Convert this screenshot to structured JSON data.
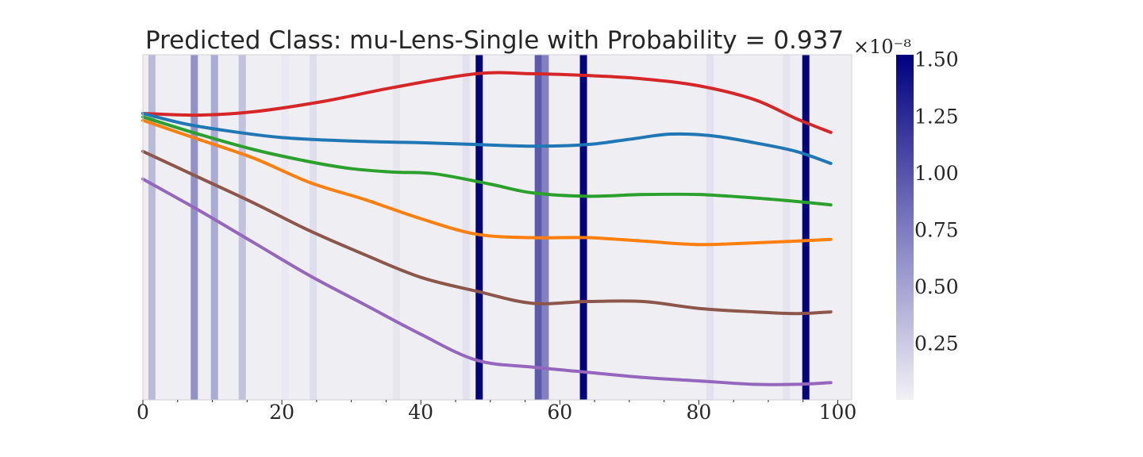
{
  "chart_data": {
    "type": "line",
    "title": "Predicted Class: mu-Lens-Single with Probability = 0.937",
    "xlabel": "",
    "ylabel": "",
    "xlim": [
      0,
      102
    ],
    "x_ticks": [
      "0",
      "20",
      "40",
      "60",
      "80",
      "100"
    ],
    "y_ticks": [],
    "grid": false,
    "legend": "none",
    "background": "#efeff3",
    "series": [
      {
        "color": "#d62728",
        "points": [
          [
            0,
            0.83
          ],
          [
            8,
            0.825
          ],
          [
            16,
            0.835
          ],
          [
            26,
            0.865
          ],
          [
            36,
            0.905
          ],
          [
            48,
            0.945
          ],
          [
            56,
            0.945
          ],
          [
            64,
            0.94
          ],
          [
            72,
            0.93
          ],
          [
            80,
            0.91
          ],
          [
            88,
            0.87
          ],
          [
            94,
            0.815
          ],
          [
            99,
            0.775
          ]
        ]
      },
      {
        "color": "#1f77b4",
        "points": [
          [
            0,
            0.83
          ],
          [
            6,
            0.8
          ],
          [
            12,
            0.78
          ],
          [
            20,
            0.76
          ],
          [
            30,
            0.75
          ],
          [
            40,
            0.745
          ],
          [
            48,
            0.74
          ],
          [
            56,
            0.735
          ],
          [
            64,
            0.74
          ],
          [
            70,
            0.755
          ],
          [
            76,
            0.77
          ],
          [
            82,
            0.765
          ],
          [
            88,
            0.745
          ],
          [
            94,
            0.72
          ],
          [
            99,
            0.685
          ]
        ]
      },
      {
        "color": "#2ca02c",
        "points": [
          [
            0,
            0.82
          ],
          [
            8,
            0.77
          ],
          [
            16,
            0.725
          ],
          [
            24,
            0.69
          ],
          [
            30,
            0.67
          ],
          [
            36,
            0.66
          ],
          [
            42,
            0.655
          ],
          [
            50,
            0.625
          ],
          [
            56,
            0.6
          ],
          [
            64,
            0.59
          ],
          [
            72,
            0.595
          ],
          [
            80,
            0.595
          ],
          [
            88,
            0.585
          ],
          [
            94,
            0.575
          ],
          [
            99,
            0.565
          ]
        ]
      },
      {
        "color": "#ff7f0e",
        "points": [
          [
            0,
            0.81
          ],
          [
            8,
            0.755
          ],
          [
            16,
            0.7
          ],
          [
            24,
            0.63
          ],
          [
            32,
            0.58
          ],
          [
            40,
            0.525
          ],
          [
            48,
            0.48
          ],
          [
            56,
            0.47
          ],
          [
            64,
            0.47
          ],
          [
            72,
            0.46
          ],
          [
            80,
            0.45
          ],
          [
            88,
            0.455
          ],
          [
            94,
            0.46
          ],
          [
            99,
            0.465
          ]
        ]
      },
      {
        "color": "#8c564b",
        "points": [
          [
            0,
            0.72
          ],
          [
            8,
            0.645
          ],
          [
            16,
            0.57
          ],
          [
            24,
            0.49
          ],
          [
            32,
            0.42
          ],
          [
            40,
            0.355
          ],
          [
            48,
            0.315
          ],
          [
            56,
            0.28
          ],
          [
            64,
            0.285
          ],
          [
            72,
            0.285
          ],
          [
            80,
            0.265
          ],
          [
            88,
            0.255
          ],
          [
            94,
            0.25
          ],
          [
            99,
            0.255
          ]
        ]
      },
      {
        "color": "#9467bd",
        "points": [
          [
            0,
            0.64
          ],
          [
            8,
            0.55
          ],
          [
            16,
            0.455
          ],
          [
            24,
            0.36
          ],
          [
            32,
            0.275
          ],
          [
            40,
            0.19
          ],
          [
            48,
            0.115
          ],
          [
            56,
            0.095
          ],
          [
            64,
            0.08
          ],
          [
            72,
            0.065
          ],
          [
            80,
            0.055
          ],
          [
            88,
            0.045
          ],
          [
            94,
            0.045
          ],
          [
            99,
            0.05
          ]
        ]
      }
    ],
    "highlight_bands": [
      {
        "x": 1.3,
        "value": 0.35
      },
      {
        "x": 7.4,
        "value": 0.6
      },
      {
        "x": 10.3,
        "value": 0.45
      },
      {
        "x": 14.3,
        "value": 0.3
      },
      {
        "x": 20.5,
        "value": 0.05
      },
      {
        "x": 24.5,
        "value": 0.12
      },
      {
        "x": 36.5,
        "value": 0.07
      },
      {
        "x": 46.5,
        "value": 0.1
      },
      {
        "x": 48.4,
        "value": 1.5
      },
      {
        "x": 56.9,
        "value": 0.95
      },
      {
        "x": 57.9,
        "value": 0.7
      },
      {
        "x": 63.4,
        "value": 1.5
      },
      {
        "x": 81.6,
        "value": 0.1
      },
      {
        "x": 92.6,
        "value": 0.08
      },
      {
        "x": 95.4,
        "value": 1.5
      }
    ],
    "colorbar": {
      "ticks": [
        "0.25",
        "0.50",
        "0.75",
        "1.00",
        "1.25",
        "1.50"
      ],
      "offset_text": "×10⁻⁸",
      "range": [
        0,
        1.52
      ],
      "colormap": [
        "#f2f1f5",
        "#00007f"
      ]
    }
  }
}
